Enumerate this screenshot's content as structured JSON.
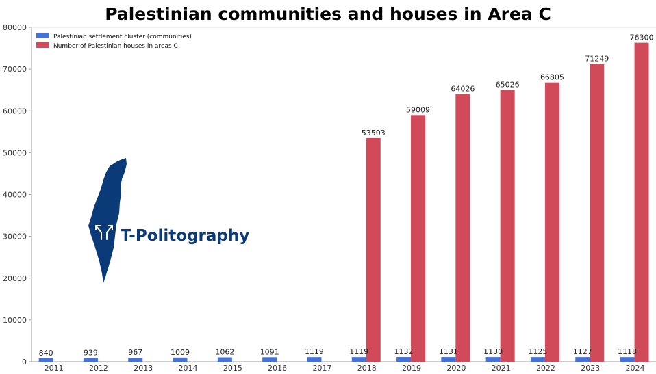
{
  "chart_data": {
    "type": "bar",
    "title": "Palestinian communities and houses in Area C",
    "xlabel": "",
    "ylabel": "",
    "categories": [
      "2011",
      "2012",
      "2013",
      "2014",
      "2015",
      "2016",
      "2017",
      "2018",
      "2019",
      "2020",
      "2021",
      "2022",
      "2023",
      "2024"
    ],
    "series": [
      {
        "name": "Palestinian settlement cluster (communities)",
        "color": "#4472d8",
        "values": [
          840,
          939,
          967,
          1009,
          1062,
          1091,
          1119,
          1119,
          1132,
          1131,
          1130,
          1125,
          1127,
          1118
        ]
      },
      {
        "name": "Number of Palestinian houses in areas C",
        "color": "#d04a5a",
        "values": [
          null,
          null,
          null,
          null,
          null,
          null,
          null,
          53503,
          59009,
          64026,
          65026,
          66805,
          71249,
          76300
        ]
      }
    ],
    "ylim": [
      0,
      80000
    ],
    "yticks": [
      "0",
      "10000",
      "20000",
      "30000",
      "40000",
      "50000",
      "60000",
      "70000",
      "80000"
    ],
    "grid": false,
    "legend_position": "top-left"
  },
  "watermark": {
    "text": "T-Politography",
    "color": "#0b3a78",
    "icon": "map-arrows-logo-icon"
  }
}
